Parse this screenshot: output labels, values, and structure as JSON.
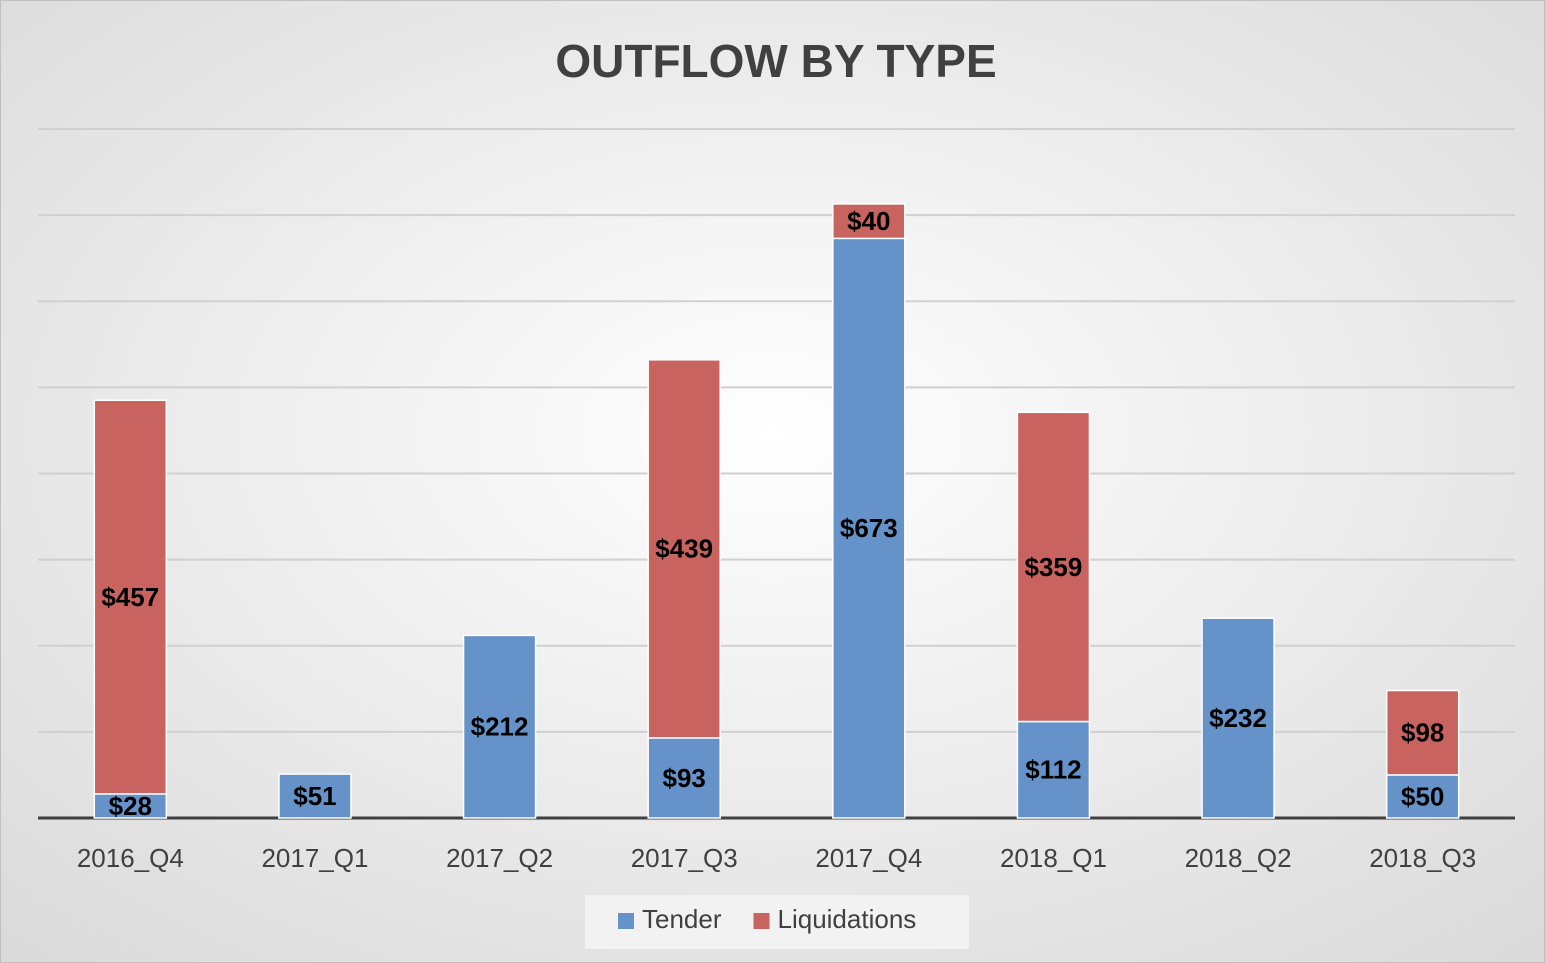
{
  "chart_data": {
    "type": "stacked_bar",
    "title": "OUTFLOW BY TYPE",
    "categories": [
      "2016_Q4",
      "2017_Q1",
      "2017_Q2",
      "2017_Q3",
      "2017_Q4",
      "2018_Q1",
      "2018_Q2",
      "2018_Q3"
    ],
    "series": [
      {
        "name": "Tender",
        "color": "#6592c8",
        "values": [
          28,
          51,
          212,
          93,
          673,
          112,
          232,
          50
        ],
        "value_labels": [
          "$28",
          "$51",
          "$212",
          "$93",
          "$673",
          "$112",
          "$232",
          "$50"
        ]
      },
      {
        "name": "Liquidations",
        "color": "#c8635f",
        "values": [
          457,
          null,
          null,
          439,
          40,
          359,
          null,
          98
        ],
        "value_labels": [
          "$457",
          null,
          null,
          "$439",
          "$40",
          "$359",
          null,
          "$98"
        ]
      }
    ],
    "ylim": [
      0,
      800
    ],
    "yticks": [
      0,
      100,
      200,
      300,
      400,
      500,
      600,
      700,
      800
    ],
    "grid": true,
    "legend": "bottom"
  }
}
